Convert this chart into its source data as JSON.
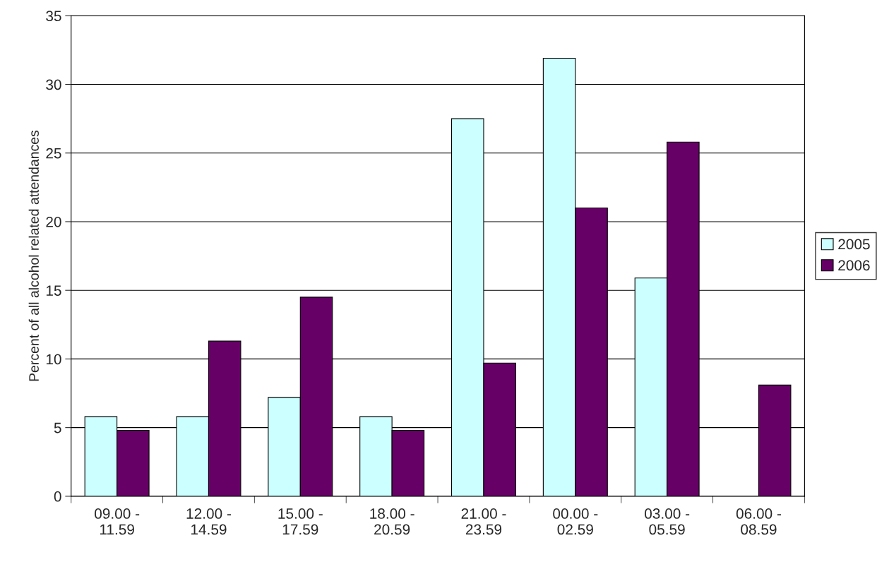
{
  "chart_data": {
    "type": "bar",
    "ylabel": "Percent of all alcohol related attendances",
    "categories": [
      "09.00 -\n11.59",
      "12.00 -\n14.59",
      "15.00 -\n17.59",
      "18.00 -\n20.59",
      "21.00 -\n23.59",
      "00.00 -\n02.59",
      "03.00 -\n05.59",
      "06.00 -\n08.59"
    ],
    "series": [
      {
        "name": "2005",
        "color": "#ccffff",
        "values": [
          5.8,
          5.8,
          7.2,
          5.8,
          27.5,
          31.9,
          15.9,
          0
        ]
      },
      {
        "name": "2006",
        "color": "#660066",
        "values": [
          4.8,
          11.3,
          14.5,
          4.8,
          9.7,
          21.0,
          25.8,
          8.1
        ]
      }
    ],
    "ylim": [
      0,
      35
    ],
    "yticks": [
      0,
      5,
      10,
      15,
      20,
      25,
      30,
      35
    ],
    "grid": "y",
    "legend": "right"
  }
}
